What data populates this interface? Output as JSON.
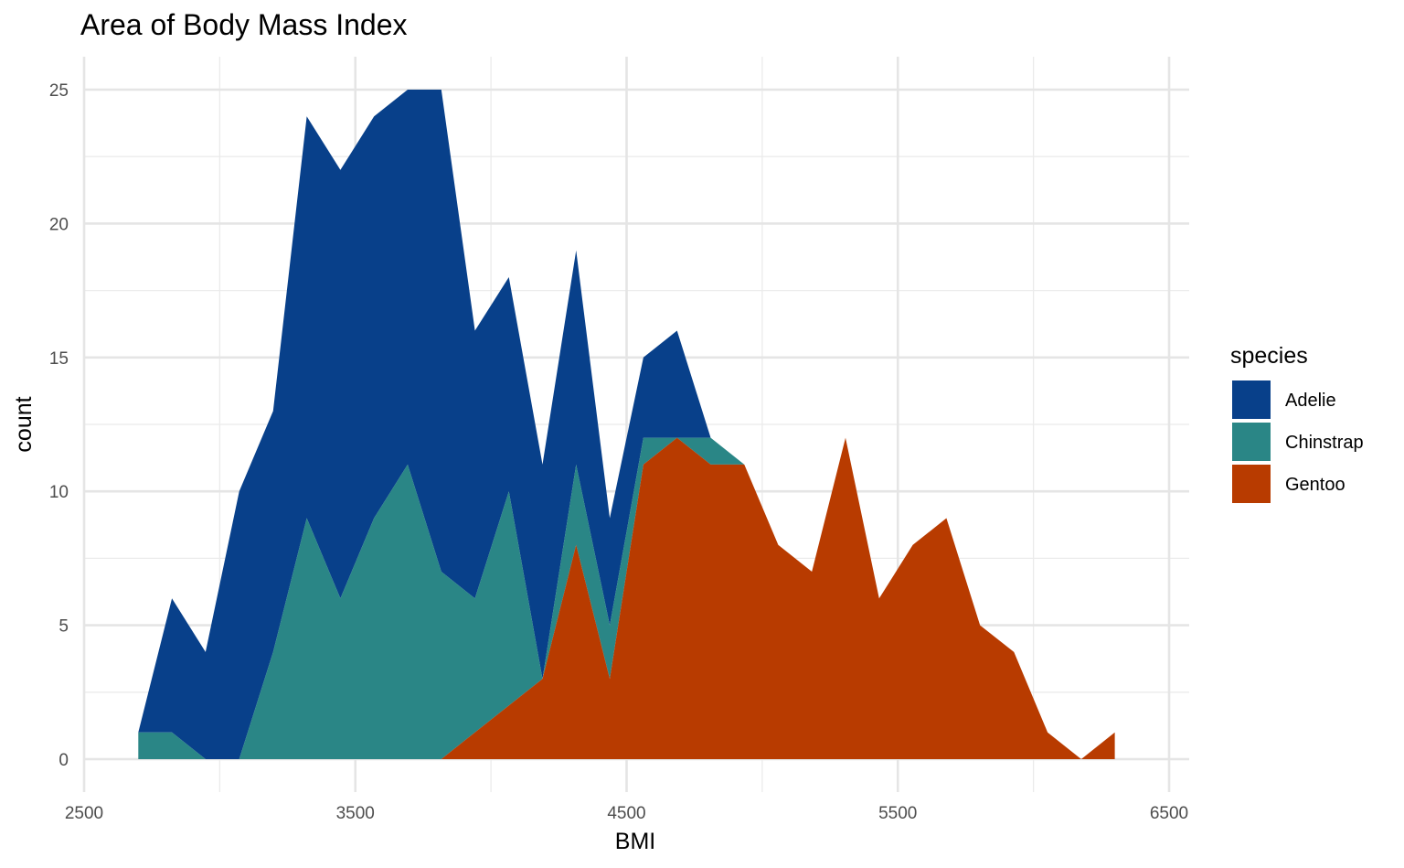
{
  "chart_data": {
    "type": "area",
    "stacked": true,
    "title": "Area of Body Mass Index",
    "xlabel": "BMI",
    "ylabel": "count",
    "xlim": [
      2500,
      6500
    ],
    "ylim": [
      0,
      25
    ],
    "x_ticks": [
      2500,
      3500,
      4500,
      5500,
      6500
    ],
    "y_ticks": [
      0,
      5,
      10,
      15,
      20,
      25
    ],
    "grid": true,
    "legend": {
      "title": "species",
      "position": "right"
    },
    "x": [
      2700,
      2824,
      2948,
      3072,
      3197,
      3321,
      3445,
      3569,
      3693,
      3817,
      3941,
      4066,
      4190,
      4314,
      4438,
      4562,
      4686,
      4810,
      4934,
      5059,
      5183,
      5307,
      5431,
      5555,
      5679,
      5803,
      5928,
      6052,
      6176,
      6300
    ],
    "series": [
      {
        "name": "Adelie",
        "color": "#08408a",
        "values": [
          0,
          5,
          4,
          10,
          9,
          15,
          16,
          15,
          14,
          18,
          10,
          8,
          8,
          8,
          4,
          3,
          4,
          0,
          0,
          0,
          0,
          0,
          0,
          0,
          0,
          0,
          0,
          0,
          0,
          0
        ]
      },
      {
        "name": "Chinstrap",
        "color": "#2a8686",
        "values": [
          1,
          1,
          0,
          0,
          4,
          9,
          6,
          9,
          11,
          7,
          5,
          8,
          0,
          3,
          2,
          1,
          0,
          1,
          0,
          0,
          0,
          0,
          0,
          0,
          0,
          0,
          0,
          0,
          0,
          0
        ]
      },
      {
        "name": "Gentoo",
        "color": "#b83b00",
        "values": [
          0,
          0,
          0,
          0,
          0,
          0,
          0,
          0,
          0,
          0,
          1,
          2,
          3,
          8,
          3,
          11,
          12,
          11,
          11,
          8,
          7,
          12,
          6,
          8,
          9,
          5,
          4,
          1,
          0,
          1
        ]
      }
    ]
  }
}
